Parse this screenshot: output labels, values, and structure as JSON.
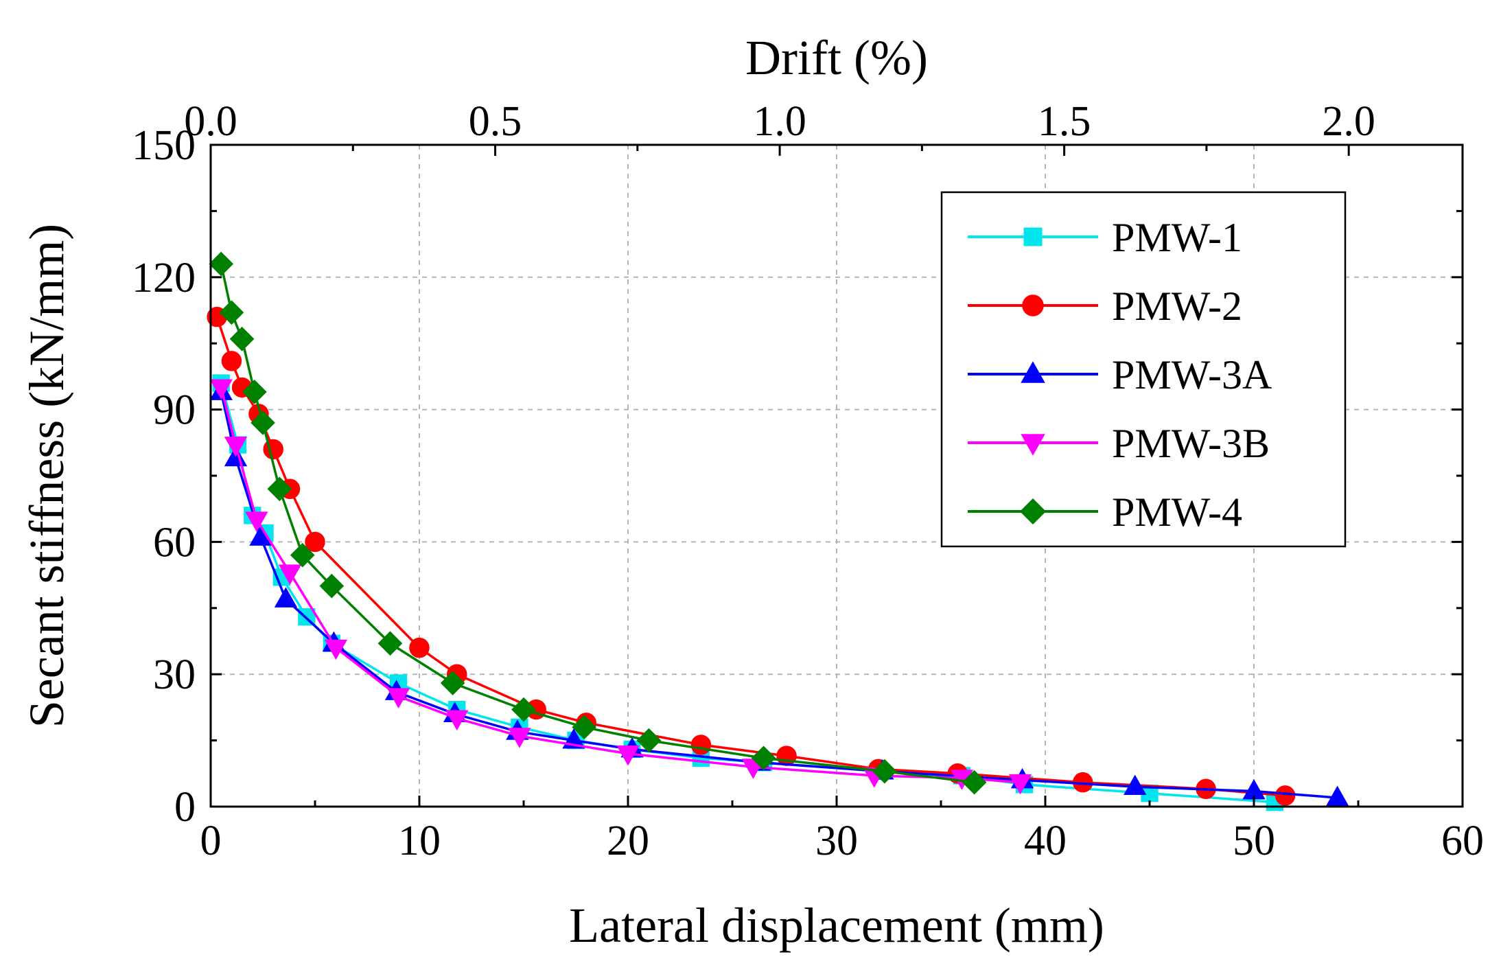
{
  "chart_data": {
    "type": "line",
    "title": "",
    "xlabel": "Lateral displacement (mm)",
    "ylabel": "Secant stiffness (kN/mm)",
    "x2label": "Drift (%)",
    "xlim": [
      0,
      60
    ],
    "ylim": [
      0,
      150
    ],
    "x2lim": [
      0,
      2.2
    ],
    "xticks": [
      "0",
      "10",
      "20",
      "30",
      "40",
      "50",
      "60"
    ],
    "yticks": [
      "0",
      "30",
      "60",
      "90",
      "120",
      "150"
    ],
    "x2ticks": [
      "0.0",
      "0.5",
      "1.0",
      "1.5",
      "2.0"
    ],
    "grid": true,
    "legend_position": "top-right",
    "series": [
      {
        "name": "PMW-1",
        "color": "#00e5ee",
        "marker": "square",
        "points": [
          [
            0.5,
            96
          ],
          [
            1.3,
            82
          ],
          [
            2.0,
            66
          ],
          [
            2.6,
            62
          ],
          [
            3.4,
            52
          ],
          [
            4.6,
            43
          ],
          [
            5.8,
            37
          ],
          [
            9.0,
            28
          ],
          [
            11.8,
            22
          ],
          [
            14.8,
            18
          ],
          [
            17.5,
            15
          ],
          [
            20.2,
            13
          ],
          [
            23.5,
            11
          ],
          [
            26.5,
            10
          ],
          [
            32.0,
            8
          ],
          [
            36.0,
            7
          ],
          [
            39.0,
            5
          ],
          [
            45.0,
            3
          ],
          [
            51.0,
            1
          ]
        ]
      },
      {
        "name": "PMW-2",
        "color": "#ff0000",
        "marker": "circle",
        "points": [
          [
            0.3,
            111
          ],
          [
            1.0,
            101
          ],
          [
            1.5,
            95
          ],
          [
            2.3,
            89
          ],
          [
            3.0,
            81
          ],
          [
            3.8,
            72
          ],
          [
            5.0,
            60
          ],
          [
            10.0,
            36
          ],
          [
            11.8,
            30
          ],
          [
            15.6,
            22
          ],
          [
            18.0,
            19
          ],
          [
            23.5,
            14
          ],
          [
            27.6,
            11.5
          ],
          [
            32.0,
            8.5
          ],
          [
            35.8,
            7.5
          ],
          [
            41.8,
            5.5
          ],
          [
            47.7,
            4
          ],
          [
            51.5,
            2.5
          ]
        ]
      },
      {
        "name": "PMW-3A",
        "color": "#0000ff",
        "marker": "triangle-up",
        "points": [
          [
            0.5,
            94
          ],
          [
            1.2,
            79
          ],
          [
            2.4,
            61
          ],
          [
            3.6,
            47
          ],
          [
            5.9,
            37
          ],
          [
            8.9,
            26
          ],
          [
            11.7,
            21
          ],
          [
            14.7,
            17
          ],
          [
            17.4,
            15
          ],
          [
            20.2,
            13
          ],
          [
            26.3,
            10
          ],
          [
            32.2,
            8
          ],
          [
            38.9,
            6
          ],
          [
            44.3,
            4.5
          ],
          [
            50.0,
            3.5
          ],
          [
            54.0,
            2
          ]
        ]
      },
      {
        "name": "PMW-3B",
        "color": "#ff00ff",
        "marker": "triangle-down",
        "points": [
          [
            0.5,
            95
          ],
          [
            1.2,
            82
          ],
          [
            2.2,
            65
          ],
          [
            3.8,
            53
          ],
          [
            6.0,
            36
          ],
          [
            9.0,
            25
          ],
          [
            11.8,
            20
          ],
          [
            14.8,
            16
          ],
          [
            20.0,
            12
          ],
          [
            26.0,
            9
          ],
          [
            31.8,
            7
          ],
          [
            36.0,
            6.5
          ],
          [
            38.8,
            5.5
          ]
        ]
      },
      {
        "name": "PMW-4",
        "color": "#008000",
        "marker": "diamond",
        "points": [
          [
            0.5,
            123
          ],
          [
            1.0,
            112
          ],
          [
            1.5,
            106
          ],
          [
            2.1,
            94
          ],
          [
            2.5,
            87
          ],
          [
            3.3,
            72
          ],
          [
            4.4,
            57
          ],
          [
            5.8,
            50
          ],
          [
            8.6,
            37
          ],
          [
            11.6,
            28
          ],
          [
            15.0,
            22
          ],
          [
            17.9,
            18
          ],
          [
            21.0,
            15
          ],
          [
            26.5,
            11
          ],
          [
            32.3,
            8
          ],
          [
            36.6,
            5.5
          ]
        ]
      }
    ]
  }
}
